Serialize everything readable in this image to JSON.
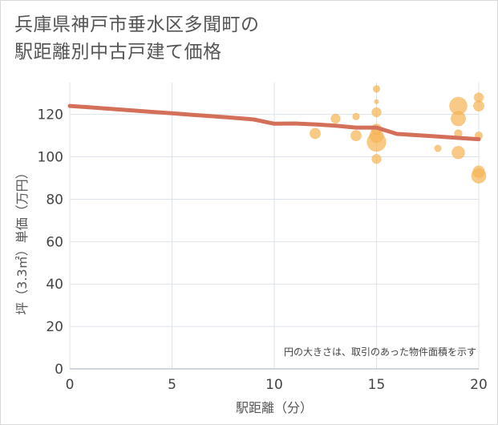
{
  "title": {
    "line1": "兵庫県神戸市垂水区多聞町の",
    "line2": "駅距離別中古戸建て価格"
  },
  "chart_data": {
    "type": "scatter",
    "title": "兵庫県神戸市垂水区多聞町の駅距離別中古戸建て価格",
    "xlabel": "駅距離（分）",
    "ylabel": "坪（3.3㎡）単価（万円）",
    "xlim": [
      0,
      20
    ],
    "ylim": [
      0,
      135
    ],
    "xticks": [
      0,
      5,
      10,
      15,
      20
    ],
    "yticks": [
      0,
      20,
      40,
      60,
      80,
      100,
      120
    ],
    "grid": true,
    "note": "円の大きさは、取引のあった物件面積を示す",
    "colors": {
      "bubble": "#f5b556",
      "trend": "#d4705a",
      "grid": "#dde3ea",
      "axis": "#bfc8d2"
    },
    "points": [
      {
        "x": 12,
        "y": 111,
        "size": 4
      },
      {
        "x": 13,
        "y": 118,
        "size": 3
      },
      {
        "x": 14,
        "y": 119,
        "size": 1.5
      },
      {
        "x": 14,
        "y": 110,
        "size": 4
      },
      {
        "x": 15,
        "y": 132,
        "size": 1.5
      },
      {
        "x": 15,
        "y": 126,
        "size": 0.5
      },
      {
        "x": 15,
        "y": 121,
        "size": 3
      },
      {
        "x": 15,
        "y": 113,
        "size": 4
      },
      {
        "x": 15,
        "y": 110,
        "size": 7
      },
      {
        "x": 15,
        "y": 107,
        "size": 14
      },
      {
        "x": 15,
        "y": 99,
        "size": 3
      },
      {
        "x": 18,
        "y": 104,
        "size": 1.5
      },
      {
        "x": 19,
        "y": 124,
        "size": 12
      },
      {
        "x": 19,
        "y": 118,
        "size": 8
      },
      {
        "x": 19,
        "y": 111,
        "size": 2
      },
      {
        "x": 19,
        "y": 102,
        "size": 6
      },
      {
        "x": 20,
        "y": 128,
        "size": 3
      },
      {
        "x": 20,
        "y": 124,
        "size": 4
      },
      {
        "x": 20,
        "y": 110,
        "size": 2
      },
      {
        "x": 20,
        "y": 93,
        "size": 5
      },
      {
        "x": 20,
        "y": 91,
        "size": 8
      }
    ],
    "trend": {
      "x": [
        0,
        1,
        2,
        3,
        4,
        5,
        6,
        7,
        8,
        9,
        10,
        11,
        12,
        13,
        14,
        15,
        16,
        17,
        18,
        19,
        20
      ],
      "y": [
        124,
        123.3,
        122.6,
        121.9,
        121.2,
        120.5,
        119.8,
        119.1,
        118.4,
        117.6,
        115.6,
        115.7,
        115.3,
        114.7,
        113.8,
        113.8,
        110.8,
        110.2,
        109.6,
        108.9,
        108.3
      ]
    }
  }
}
